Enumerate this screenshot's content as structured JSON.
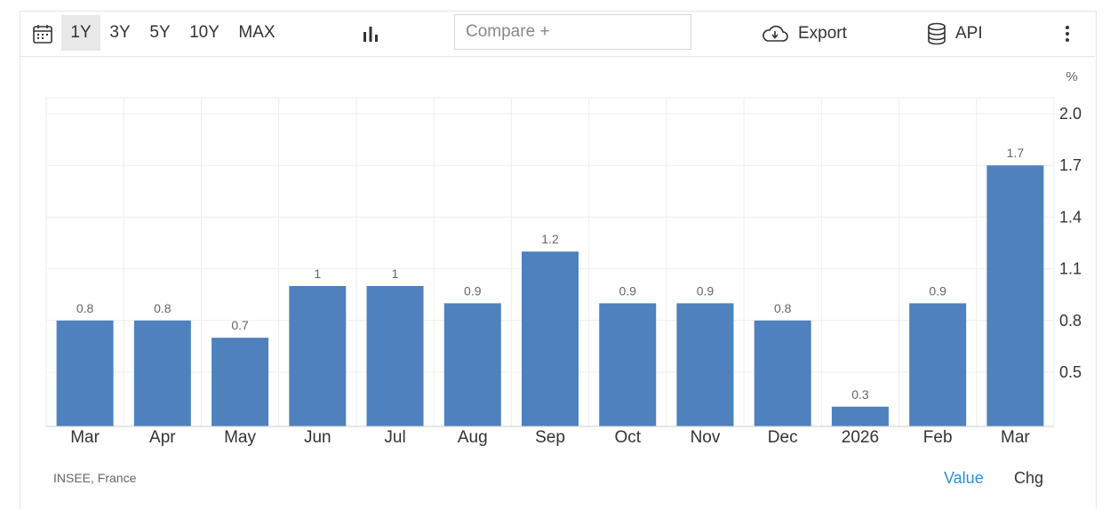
{
  "toolbar": {
    "calendar_icon": "calendar-icon",
    "ranges": [
      {
        "label": "1Y",
        "active": true
      },
      {
        "label": "3Y",
        "active": false
      },
      {
        "label": "5Y",
        "active": false
      },
      {
        "label": "10Y",
        "active": false
      },
      {
        "label": "MAX",
        "active": false
      }
    ],
    "chart_type_icon": "bar-chart-icon",
    "compare_placeholder": "Compare +",
    "export_label": "Export",
    "export_icon": "cloud-download-icon",
    "api_label": "API",
    "api_icon": "database-icon",
    "more_icon": "more-vertical-icon"
  },
  "chart_data": {
    "type": "bar",
    "unit": "%",
    "categories": [
      "Mar",
      "Apr",
      "May",
      "Jun",
      "Jul",
      "Aug",
      "Sep",
      "Oct",
      "Nov",
      "Dec",
      "2026",
      "Feb",
      "Mar"
    ],
    "values": [
      0.8,
      0.8,
      0.7,
      1,
      1,
      0.9,
      1.2,
      0.9,
      0.9,
      0.8,
      0.3,
      0.9,
      1.7
    ],
    "data_labels": [
      "0.8",
      "0.8",
      "0.7",
      "1",
      "1",
      "0.9",
      "1.2",
      "0.9",
      "0.9",
      "0.8",
      "0.3",
      "0.9",
      "1.7"
    ],
    "y_ticks": [
      "0.5",
      "0.8",
      "1.1",
      "1.4",
      "1.7",
      "2.0"
    ],
    "ylim": [
      0.2,
      2.1
    ],
    "y_axis_side": "right",
    "grid": true,
    "bar_color": "#4e81bd"
  },
  "footer": {
    "source": "INSEE, France",
    "toggle_value": "Value",
    "toggle_chg": "Chg"
  },
  "colors": {
    "accent": "#2a8fd6",
    "bar": "#4e81bd"
  }
}
